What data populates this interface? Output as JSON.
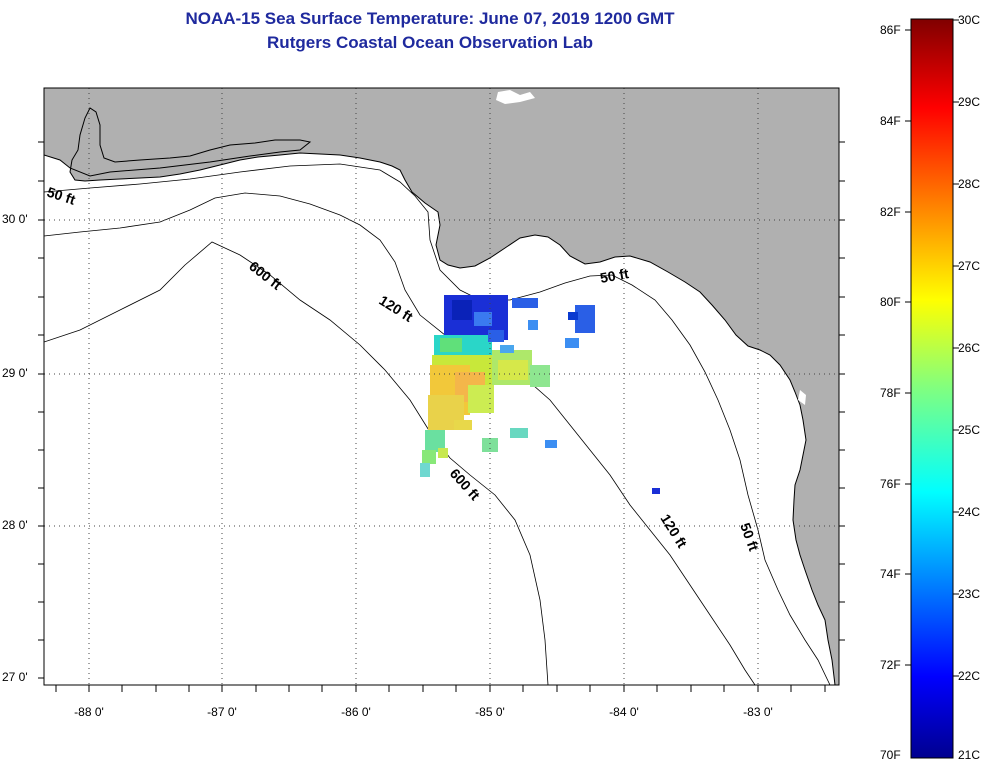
{
  "title": {
    "line1": "NOAA-15 Sea Surface Temperature:  June 07, 2019 1200 GMT",
    "line2": "Rutgers Coastal Ocean Observation Lab"
  },
  "map": {
    "region": "Northeastern Gulf of Mexico",
    "lat_labels": [
      "30 0'",
      "29 0'",
      "28 0'",
      "27 0'"
    ],
    "lon_labels": [
      "-88 0'",
      "-87 0'",
      "-86 0'",
      "-85 0'",
      "-84 0'",
      "-83 0'"
    ],
    "contour_labels": {
      "ft50_west": "50 ft",
      "ft50_east": "50 ft",
      "ft50_south": "50 ft",
      "ft120_north": "120 ft",
      "ft120_south": "120 ft",
      "ft600_north": "600 ft",
      "ft600_south": "600 ft"
    },
    "colors": {
      "land": "#b0b0b0",
      "ocean": "#ffffff",
      "title": "#1f2a9e"
    }
  },
  "colorbar": {
    "fahrenheit": [
      "86F",
      "84F",
      "82F",
      "80F",
      "78F",
      "76F",
      "74F",
      "72F",
      "70F"
    ],
    "celsius": [
      "30C",
      "29C",
      "28C",
      "27C",
      "26C",
      "25C",
      "24C",
      "23C",
      "22C",
      "21C"
    ],
    "range_c": [
      21,
      30
    ],
    "range_f": [
      70,
      86
    ]
  }
}
